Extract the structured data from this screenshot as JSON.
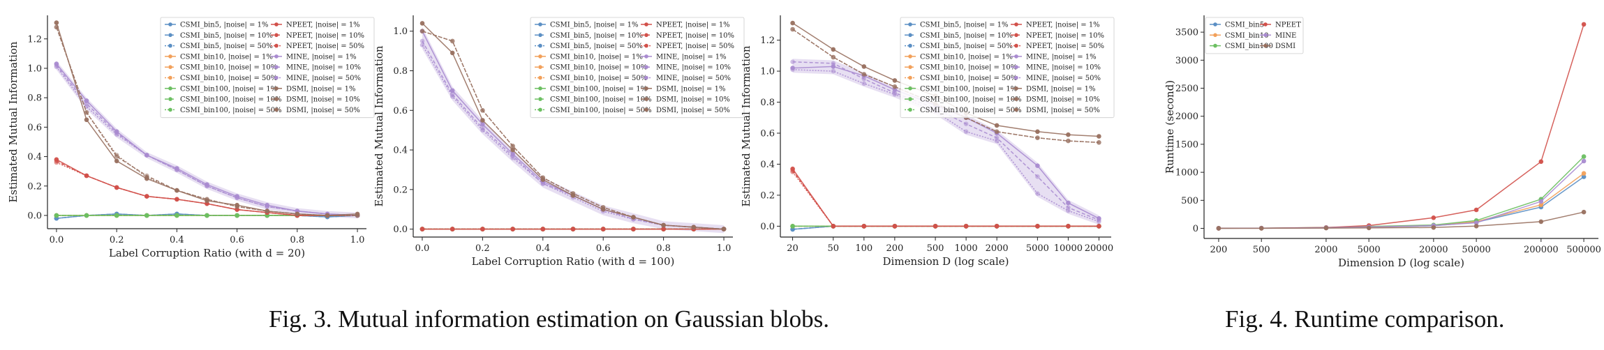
{
  "captions": {
    "fig3": "Fig. 3.  Mutual information estimation on Gaussian blobs.",
    "fig4": "Fig. 4.  Runtime comparison."
  },
  "colors": {
    "CSMI_bin5": "#5b8fc4",
    "CSMI_bin10": "#f2a05a",
    "CSMI_bin100": "#6cbf62",
    "NPEET": "#d2504a",
    "MINE": "#a98bd0",
    "DSMI": "#98705f"
  },
  "chart_data": [
    {
      "type": "line",
      "xlabel": "Label Corruption Ratio (with d = 20)",
      "ylabel": "Estimated Mutual Information",
      "x": [
        0.0,
        0.1,
        0.2,
        0.3,
        0.4,
        0.5,
        0.6,
        0.7,
        0.8,
        0.9,
        1.0
      ],
      "xticks": [
        "0.0",
        "0.2",
        "0.4",
        "0.6",
        "0.8",
        "1.0"
      ],
      "yticks": [
        "0.0",
        "0.2",
        "0.4",
        "0.6",
        "0.8",
        "1.0",
        "1.2"
      ],
      "xlim": [
        -0.03,
        1.03
      ],
      "ylim": [
        -0.09,
        1.36
      ],
      "legend_position": "upper-right",
      "series": [
        {
          "name": "CSMI_bin5, |noise| = 1%",
          "values": [
            -0.02,
            0.0,
            0.01,
            0.0,
            0.01,
            0.0,
            0.0,
            0.0,
            0.0,
            -0.01,
            0.0
          ]
        },
        {
          "name": "CSMI_bin5, |noise| = 10%",
          "values": [
            -0.02,
            0.0,
            0.01,
            0.0,
            0.01,
            0.0,
            0.0,
            0.0,
            0.0,
            -0.01,
            0.0
          ]
        },
        {
          "name": "CSMI_bin5, |noise| = 50%",
          "values": [
            -0.02,
            0.0,
            0.01,
            0.0,
            0.01,
            0.0,
            0.0,
            0.0,
            0.0,
            -0.01,
            0.0
          ]
        },
        {
          "name": "CSMI_bin10, |noise| = 1%",
          "values": [
            0.0,
            0.0,
            0.0,
            0.0,
            0.0,
            0.0,
            0.0,
            0.0,
            0.0,
            0.0,
            0.0
          ]
        },
        {
          "name": "CSMI_bin10, |noise| = 10%",
          "values": [
            0.0,
            0.0,
            0.0,
            0.0,
            0.0,
            0.0,
            0.0,
            0.0,
            0.0,
            0.0,
            0.0
          ]
        },
        {
          "name": "CSMI_bin10, |noise| = 50%",
          "values": [
            0.0,
            0.0,
            0.0,
            0.0,
            0.0,
            0.0,
            0.0,
            0.0,
            0.0,
            0.0,
            0.0
          ]
        },
        {
          "name": "CSMI_bin100, |noise| = 1%",
          "values": [
            0.0,
            0.0,
            0.0,
            0.0,
            0.0,
            0.0,
            0.0,
            0.0,
            0.0,
            0.0,
            0.0
          ]
        },
        {
          "name": "CSMI_bin100, |noise| = 10%",
          "values": [
            0.0,
            0.0,
            0.0,
            0.0,
            0.0,
            0.0,
            0.0,
            0.0,
            0.0,
            0.0,
            0.0
          ]
        },
        {
          "name": "CSMI_bin100, |noise| = 50%",
          "values": [
            0.0,
            0.0,
            0.0,
            0.0,
            0.0,
            0.0,
            0.0,
            0.0,
            0.0,
            0.0,
            0.0
          ]
        },
        {
          "name": "NPEET, |noise| = 1%",
          "values": [
            0.38,
            0.27,
            0.19,
            0.13,
            0.11,
            0.08,
            0.04,
            0.02,
            0.0,
            0.0,
            0.0
          ]
        },
        {
          "name": "NPEET, |noise| = 10%",
          "values": [
            0.37,
            0.27,
            0.19,
            0.13,
            0.11,
            0.08,
            0.04,
            0.02,
            0.0,
            0.0,
            0.0
          ]
        },
        {
          "name": "NPEET, |noise| = 50%",
          "values": [
            0.36,
            0.27,
            0.19,
            0.13,
            0.11,
            0.08,
            0.04,
            0.02,
            0.0,
            0.0,
            0.0
          ]
        },
        {
          "name": "MINE, |noise| = 1%",
          "values": [
            1.03,
            0.78,
            0.57,
            0.41,
            0.32,
            0.21,
            0.13,
            0.07,
            0.03,
            0.01,
            0.0
          ]
        },
        {
          "name": "MINE, |noise| = 10%",
          "values": [
            1.02,
            0.76,
            0.56,
            0.41,
            0.31,
            0.2,
            0.12,
            0.06,
            0.03,
            0.01,
            0.0
          ]
        },
        {
          "name": "MINE, |noise| = 50%",
          "values": [
            1.01,
            0.74,
            0.55,
            0.41,
            0.31,
            0.2,
            0.12,
            0.06,
            0.03,
            0.01,
            0.0
          ]
        },
        {
          "name": "DSMI, |noise| = 1%",
          "values": [
            1.31,
            0.65,
            0.37,
            0.25,
            0.17,
            0.1,
            0.07,
            0.03,
            0.01,
            0.0,
            0.01
          ]
        },
        {
          "name": "DSMI, |noise| = 10%",
          "values": [
            1.28,
            0.7,
            0.4,
            0.27,
            0.17,
            0.11,
            0.06,
            0.03,
            0.01,
            0.0,
            0.0
          ]
        },
        {
          "name": "DSMI, |noise| = 50%",
          "values": [
            1.28,
            0.7,
            0.41,
            0.26,
            0.17,
            0.11,
            0.06,
            0.03,
            0.01,
            0.0,
            0.0
          ]
        }
      ]
    },
    {
      "type": "line",
      "xlabel": "Label Corruption Ratio (with d = 100)",
      "ylabel": "Estimated Mutual Information",
      "x": [
        0.0,
        0.1,
        0.2,
        0.3,
        0.4,
        0.5,
        0.6,
        0.7,
        0.8,
        0.9,
        1.0
      ],
      "xticks": [
        "0.0",
        "0.2",
        "0.4",
        "0.6",
        "0.8",
        "1.0"
      ],
      "yticks": [
        "0.0",
        "0.2",
        "0.4",
        "0.6",
        "0.8",
        "1.0"
      ],
      "xlim": [
        -0.03,
        1.03
      ],
      "ylim": [
        -0.04,
        1.08
      ],
      "legend_position": "upper-right",
      "series": [
        {
          "name": "CSMI_bin5, |noise| = 1%",
          "values": [
            0,
            0,
            0,
            0,
            0,
            0,
            0,
            0,
            0,
            0,
            0
          ]
        },
        {
          "name": "CSMI_bin5, |noise| = 10%",
          "values": [
            0,
            0,
            0,
            0,
            0,
            0,
            0,
            0,
            0,
            0,
            0
          ]
        },
        {
          "name": "CSMI_bin5, |noise| = 50%",
          "values": [
            0,
            0,
            0,
            0,
            0,
            0,
            0,
            0,
            0,
            0,
            0
          ]
        },
        {
          "name": "CSMI_bin10, |noise| = 1%",
          "values": [
            0,
            0,
            0,
            0,
            0,
            0,
            0,
            0,
            0,
            0,
            0
          ]
        },
        {
          "name": "CSMI_bin10, |noise| = 10%",
          "values": [
            0,
            0,
            0,
            0,
            0,
            0,
            0,
            0,
            0,
            0,
            0
          ]
        },
        {
          "name": "CSMI_bin10, |noise| = 50%",
          "values": [
            0,
            0,
            0,
            0,
            0,
            0,
            0,
            0,
            0,
            0,
            0
          ]
        },
        {
          "name": "CSMI_bin100, |noise| = 1%",
          "values": [
            0,
            0,
            0,
            0,
            0,
            0,
            0,
            0,
            0,
            0,
            0
          ]
        },
        {
          "name": "CSMI_bin100, |noise| = 10%",
          "values": [
            0,
            0,
            0,
            0,
            0,
            0,
            0,
            0,
            0,
            0,
            0
          ]
        },
        {
          "name": "CSMI_bin100, |noise| = 50%",
          "values": [
            0,
            0,
            0,
            0,
            0,
            0,
            0,
            0,
            0,
            0,
            0
          ]
        },
        {
          "name": "NPEET, |noise| = 1%",
          "values": [
            0,
            0,
            0,
            0,
            0,
            0,
            0,
            0,
            0,
            0,
            0
          ]
        },
        {
          "name": "NPEET, |noise| = 10%",
          "values": [
            0,
            0,
            0,
            0,
            0,
            0,
            0,
            0,
            0,
            0,
            0
          ]
        },
        {
          "name": "NPEET, |noise| = 50%",
          "values": [
            0,
            0,
            0,
            0,
            0,
            0,
            0,
            0,
            0,
            0,
            0
          ]
        },
        {
          "name": "MINE, |noise| = 1%",
          "values": [
            1.0,
            0.7,
            0.53,
            0.38,
            0.24,
            0.17,
            0.1,
            0.06,
            0.02,
            0.01,
            0.0
          ]
        },
        {
          "name": "MINE, |noise| = 10%",
          "values": [
            0.95,
            0.68,
            0.51,
            0.37,
            0.23,
            0.17,
            0.1,
            0.05,
            0.02,
            0.01,
            0.0
          ]
        },
        {
          "name": "MINE, |noise| = 50%",
          "values": [
            0.93,
            0.67,
            0.5,
            0.36,
            0.23,
            0.16,
            0.09,
            0.05,
            0.02,
            0.01,
            0.0
          ]
        },
        {
          "name": "DSMI, |noise| = 1%",
          "values": [
            1.04,
            0.89,
            0.55,
            0.4,
            0.25,
            0.17,
            0.1,
            0.06,
            0.02,
            0.01,
            0.0
          ]
        },
        {
          "name": "DSMI, |noise| = 10%",
          "values": [
            1.0,
            0.95,
            0.6,
            0.42,
            0.26,
            0.18,
            0.11,
            0.06,
            0.02,
            0.01,
            0.0
          ]
        },
        {
          "name": "DSMI, |noise| = 50%",
          "values": [
            1.0,
            0.95,
            0.6,
            0.42,
            0.26,
            0.18,
            0.11,
            0.06,
            0.02,
            0.01,
            0.0
          ]
        }
      ]
    },
    {
      "type": "line",
      "xlabel": "Dimension D (log scale)",
      "ylabel": "Estimated Mutual Information",
      "x": [
        20,
        50,
        100,
        200,
        500,
        1000,
        2000,
        5000,
        10000,
        20000
      ],
      "xticks": [
        "20",
        "50",
        "100",
        "200",
        "500",
        "1000",
        "2000",
        "5000",
        "10000",
        "20000"
      ],
      "yticks": [
        "0.0",
        "0.2",
        "0.4",
        "0.6",
        "0.8",
        "1.0",
        "1.2"
      ],
      "xscale": "log",
      "ylim": [
        -0.07,
        1.36
      ],
      "legend_position": "upper-right",
      "series": [
        {
          "name": "CSMI_bin5, |noise| = 1%",
          "values": [
            -0.02,
            0.0,
            0.0,
            0.0,
            0.0,
            0.0,
            0.0,
            0.0,
            0.0,
            0.0
          ]
        },
        {
          "name": "CSMI_bin5, |noise| = 10%",
          "values": [
            -0.02,
            0.0,
            0.0,
            0.0,
            0.0,
            0.0,
            0.0,
            0.0,
            0.0,
            0.0
          ]
        },
        {
          "name": "CSMI_bin5, |noise| = 50%",
          "values": [
            -0.02,
            0.0,
            0.0,
            0.0,
            0.0,
            0.0,
            0.0,
            0.0,
            0.0,
            0.0
          ]
        },
        {
          "name": "CSMI_bin10, |noise| = 1%",
          "values": [
            0,
            0,
            0,
            0,
            0,
            0,
            0,
            0,
            0,
            0
          ]
        },
        {
          "name": "CSMI_bin10, |noise| = 10%",
          "values": [
            0,
            0,
            0,
            0,
            0,
            0,
            0,
            0,
            0,
            0
          ]
        },
        {
          "name": "CSMI_bin10, |noise| = 50%",
          "values": [
            0,
            0,
            0,
            0,
            0,
            0,
            0,
            0,
            0,
            0
          ]
        },
        {
          "name": "CSMI_bin100, |noise| = 1%",
          "values": [
            0,
            0,
            0,
            0,
            0,
            0,
            0,
            0,
            0,
            0
          ]
        },
        {
          "name": "CSMI_bin100, |noise| = 10%",
          "values": [
            0,
            0,
            0,
            0,
            0,
            0,
            0,
            0,
            0,
            0
          ]
        },
        {
          "name": "CSMI_bin100, |noise| = 50%",
          "values": [
            0,
            0,
            0,
            0,
            0,
            0,
            0,
            0,
            0,
            0
          ]
        },
        {
          "name": "NPEET, |noise| = 1%",
          "values": [
            0.37,
            0.0,
            0.0,
            0.0,
            0.0,
            0.0,
            0.0,
            0.0,
            0.0,
            0.0
          ]
        },
        {
          "name": "NPEET, |noise| = 10%",
          "values": [
            0.36,
            0.0,
            0.0,
            0.0,
            0.0,
            0.0,
            0.0,
            0.0,
            0.0,
            0.0
          ]
        },
        {
          "name": "NPEET, |noise| = 50%",
          "values": [
            0.35,
            0.0,
            0.0,
            0.0,
            0.0,
            0.0,
            0.0,
            0.0,
            0.0,
            0.0
          ]
        },
        {
          "name": "MINE, |noise| = 1%",
          "values": [
            1.02,
            1.03,
            0.97,
            0.88,
            0.78,
            0.7,
            0.6,
            0.39,
            0.15,
            0.05
          ]
        },
        {
          "name": "MINE, |noise| = 10%",
          "values": [
            1.06,
            1.05,
            0.95,
            0.86,
            0.76,
            0.66,
            0.57,
            0.32,
            0.12,
            0.04
          ]
        },
        {
          "name": "MINE, |noise| = 50%",
          "values": [
            1.01,
            1.0,
            0.92,
            0.85,
            0.74,
            0.61,
            0.55,
            0.21,
            0.1,
            0.03
          ]
        },
        {
          "name": "DSMI, |noise| = 1%",
          "values": [
            1.31,
            1.14,
            1.03,
            0.94,
            0.84,
            0.73,
            0.65,
            0.61,
            0.59,
            0.58
          ]
        },
        {
          "name": "DSMI, |noise| = 10%",
          "values": [
            1.27,
            1.09,
            0.98,
            0.9,
            0.79,
            0.7,
            0.61,
            0.57,
            0.55,
            0.54
          ]
        },
        {
          "name": "DSMI, |noise| = 50%",
          "values": [
            1.27,
            1.09,
            0.98,
            0.9,
            0.79,
            0.7,
            0.61,
            0.57,
            0.55,
            0.54
          ]
        }
      ]
    },
    {
      "type": "line",
      "xlabel": "Dimension D (log scale)",
      "ylabel": "Runtime (second)",
      "x": [
        200,
        500,
        2000,
        5000,
        20000,
        50000,
        200000,
        500000
      ],
      "xticks": [
        "200",
        "500",
        "2000",
        "5000",
        "20000",
        "50000",
        "200000",
        "500000"
      ],
      "yticks": [
        "0",
        "500",
        "1000",
        "1500",
        "2000",
        "2500",
        "3000",
        "3500"
      ],
      "xscale": "log",
      "ylim": [
        -180,
        3800
      ],
      "legend_position": "upper-left",
      "series": [
        {
          "name": "CSMI_bin5",
          "values": [
            1,
            2,
            8,
            20,
            45,
            110,
            380,
            920
          ]
        },
        {
          "name": "CSMI_bin10",
          "values": [
            1,
            2,
            9,
            22,
            50,
            120,
            420,
            980
          ]
        },
        {
          "name": "CSMI_bin100",
          "values": [
            2,
            4,
            15,
            35,
            60,
            140,
            520,
            1280
          ]
        },
        {
          "name": "NPEET",
          "values": [
            1,
            4,
            15,
            50,
            190,
            330,
            1190,
            3640
          ]
        },
        {
          "name": "MINE",
          "values": [
            2,
            4,
            12,
            25,
            50,
            100,
            480,
            1200
          ]
        },
        {
          "name": "DSMI",
          "values": [
            1,
            2,
            5,
            8,
            15,
            40,
            120,
            290
          ]
        }
      ]
    }
  ]
}
